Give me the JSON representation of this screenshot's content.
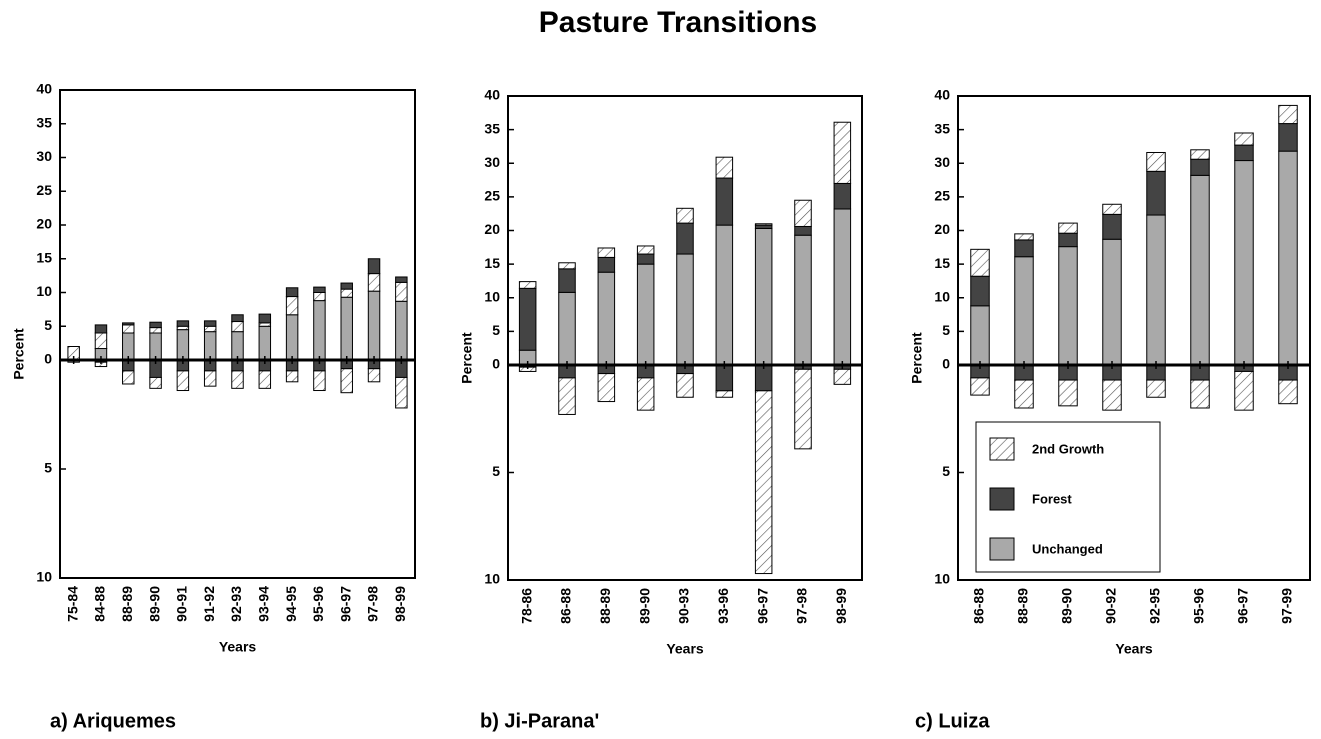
{
  "title": "Pasture Transitions",
  "chart_data": [
    {
      "type": "bar",
      "caption": "a) Ariquemes",
      "ylabel": "Percent",
      "xlabel": "Years",
      "categories": [
        "75-84",
        "84-88",
        "88-89",
        "89-90",
        "90-91",
        "91-92",
        "92-93",
        "93-94",
        "94-95",
        "95-96",
        "96-97",
        "97-98",
        "98-99"
      ],
      "ylim": [
        0,
        40
      ],
      "yticks": [
        0,
        5,
        10,
        15,
        20,
        25,
        30,
        35,
        40
      ],
      "y2lim": [
        0,
        10
      ],
      "y2ticks": [
        5,
        10
      ],
      "series": [
        {
          "name": "Unchanged",
          "color": "#a9a9a9",
          "values": [
            0,
            1.7,
            4,
            4,
            4.5,
            4.2,
            4.2,
            5,
            6.7,
            8.8,
            9.3,
            10.2,
            8.7
          ]
        },
        {
          "name": "2nd Growth",
          "color": "hatch",
          "values": [
            2,
            2.3,
            1.2,
            0.8,
            0.5,
            0.8,
            1.5,
            0.5,
            2.7,
            1.2,
            1.2,
            2.6,
            2.8
          ]
        },
        {
          "name": "Forest",
          "color": "#444444",
          "values": [
            0,
            1.2,
            0.3,
            0.8,
            0.8,
            0.8,
            1,
            1.3,
            1.3,
            0.8,
            0.9,
            2.2,
            0.8
          ]
        },
        {
          "name": "Forest",
          "color": "#444444",
          "axis": "y2",
          "values": [
            0,
            0.1,
            0.5,
            0.8,
            0.5,
            0.5,
            0.5,
            0.5,
            0.5,
            0.5,
            0.4,
            0.4,
            0.8
          ]
        },
        {
          "name": "2nd Growth",
          "color": "hatch",
          "axis": "y2",
          "values": [
            0.1,
            0.2,
            0.6,
            0.5,
            0.9,
            0.7,
            0.8,
            0.8,
            0.5,
            0.9,
            1.1,
            0.6,
            1.4
          ]
        }
      ]
    },
    {
      "type": "bar",
      "caption": "b) Ji-Parana'",
      "ylabel": "Percent",
      "xlabel": "Years",
      "categories": [
        "78-86",
        "86-88",
        "88-89",
        "89-90",
        "90-93",
        "93-96",
        "96-97",
        "97-98",
        "98-99"
      ],
      "ylim": [
        0,
        40
      ],
      "yticks": [
        0,
        5,
        10,
        15,
        20,
        25,
        30,
        35,
        40
      ],
      "y2lim": [
        0,
        10
      ],
      "y2ticks": [
        5,
        10
      ],
      "series": [
        {
          "name": "Unchanged",
          "color": "#a9a9a9",
          "values": [
            2.2,
            10.8,
            13.8,
            15,
            16.5,
            20.8,
            20.3,
            19.3,
            23.2
          ]
        },
        {
          "name": "Forest",
          "color": "#444444",
          "values": [
            9.2,
            3.5,
            2.2,
            1.5,
            4.6,
            7,
            0.5,
            1.3,
            3.8
          ]
        },
        {
          "name": "2nd Growth",
          "color": "hatch",
          "values": [
            1,
            0.9,
            1.4,
            1.2,
            2.2,
            3.1,
            0.2,
            3.9,
            9.1
          ]
        },
        {
          "name": "Forest",
          "color": "#444444",
          "axis": "y2",
          "values": [
            0.1,
            0.6,
            0.4,
            0.6,
            0.4,
            1.2,
            1.2,
            0.2,
            0.2
          ]
        },
        {
          "name": "2nd Growth",
          "color": "hatch",
          "axis": "y2",
          "values": [
            0.2,
            1.7,
            1.3,
            1.5,
            1.1,
            0.3,
            8.5,
            3.7,
            0.7
          ]
        }
      ]
    },
    {
      "type": "bar",
      "caption": "c) Luiza",
      "ylabel": "Percent",
      "xlabel": "Years",
      "legend": true,
      "categories": [
        "86-88",
        "88-89",
        "89-90",
        "90-92",
        "92-95",
        "95-96",
        "96-97",
        "97-99"
      ],
      "ylim": [
        0,
        40
      ],
      "yticks": [
        0,
        5,
        10,
        15,
        20,
        25,
        30,
        35,
        40
      ],
      "y2lim": [
        0,
        10
      ],
      "y2ticks": [
        5,
        10
      ],
      "series": [
        {
          "name": "Unchanged",
          "color": "#a9a9a9",
          "values": [
            8.8,
            16.1,
            17.6,
            18.7,
            22.3,
            28.2,
            30.4,
            31.8
          ]
        },
        {
          "name": "Forest",
          "color": "#444444",
          "values": [
            4.4,
            2.5,
            2,
            3.7,
            6.5,
            2.4,
            2.3,
            4.1
          ]
        },
        {
          "name": "2nd Growth",
          "color": "hatch",
          "values": [
            4,
            0.9,
            1.5,
            1.5,
            2.8,
            1.4,
            1.8,
            2.7
          ]
        },
        {
          "name": "Forest",
          "color": "#444444",
          "axis": "y2",
          "values": [
            0.6,
            0.7,
            0.7,
            0.7,
            0.7,
            0.7,
            0.3,
            0.7
          ]
        },
        {
          "name": "2nd Growth",
          "color": "hatch",
          "axis": "y2",
          "values": [
            0.8,
            1.3,
            1.2,
            1.4,
            0.8,
            1.3,
            1.8,
            1.1
          ]
        }
      ]
    }
  ]
}
